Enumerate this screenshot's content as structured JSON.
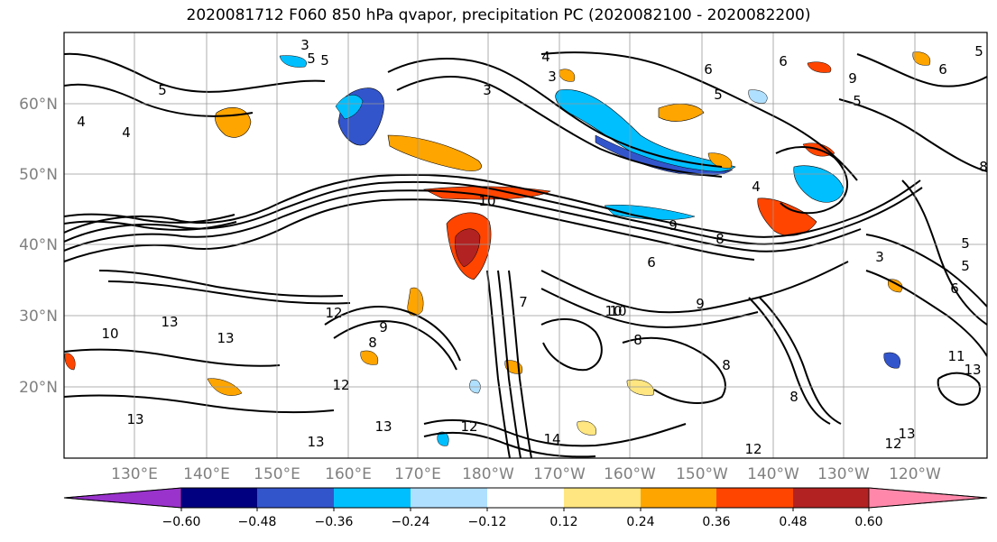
{
  "title": "2020081712 F060 850 hPa qvapor, precipitation PC (2020082100 - 2020082200)",
  "map": {
    "lat_labels": [
      "60°N",
      "50°N",
      "40°N",
      "30°N",
      "20°N"
    ],
    "lon_labels": [
      "130°E",
      "140°E",
      "150°E",
      "160°E",
      "170°E",
      "180°W",
      "170°W",
      "160°W",
      "150°W",
      "140°W",
      "130°W",
      "120°W"
    ],
    "contour_labels": [
      "3",
      "5",
      "4",
      "5",
      "5",
      "4",
      "6",
      "5",
      "6",
      "3",
      "6",
      "9",
      "5",
      "4",
      "4",
      "3",
      "8",
      "10",
      "5",
      "8",
      "6",
      "10",
      "9",
      "5",
      "12",
      "13",
      "13",
      "8",
      "10",
      "9",
      "12",
      "10",
      "9",
      "8",
      "8",
      "13",
      "12",
      "13",
      "14",
      "12",
      "12",
      "13",
      "13",
      "11",
      "13",
      "3",
      "5",
      "6",
      "7",
      "8"
    ]
  },
  "colorbar": {
    "ticks": [
      "−0.60",
      "−0.48",
      "−0.36",
      "−0.24",
      "−0.12",
      "0.12",
      "0.24",
      "0.36",
      "0.48",
      "0.60"
    ],
    "colors": [
      "#9933cc",
      "#000080",
      "#3355cc",
      "#00bfff",
      "#b0e0ff",
      "#ffffff",
      "#ffe680",
      "#ffa500",
      "#ff4500",
      "#b22222",
      "#ff88aa"
    ]
  },
  "colors": {
    "contour": "#000000",
    "grid": "#999999",
    "neg_shading": [
      "#3355cc",
      "#00bfff",
      "#b0e0ff",
      "#000080"
    ],
    "pos_shading": [
      "#ffe680",
      "#ffa500",
      "#ff4500",
      "#b22222"
    ]
  }
}
